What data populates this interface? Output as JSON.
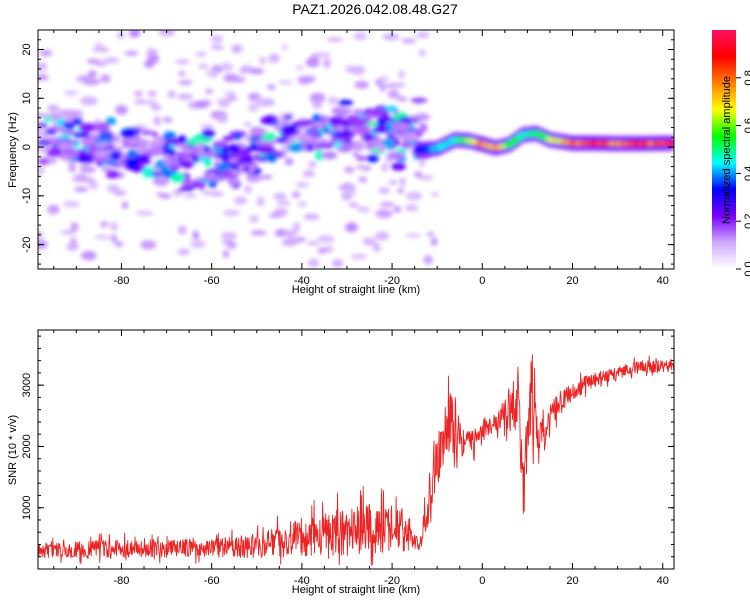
{
  "title": "PAZ1.2026.042.08.48.G27",
  "colors": {
    "snr_line": "#ee2222",
    "axis": "#000000"
  },
  "chart_data": [
    {
      "type": "heatmap",
      "title": "PAZ1.2026.042.08.48.G27",
      "xlabel": "Height of straight line (km)",
      "ylabel": "Frequency (Hz)",
      "xlim": [
        -98.5,
        42.5
      ],
      "ylim": [
        -25,
        24
      ],
      "xticks": [
        -80,
        -60,
        -40,
        -20,
        0,
        20,
        40
      ],
      "yticks": [
        -20,
        -10,
        0,
        10,
        20
      ],
      "colorbar": {
        "label": "Normalized spectral amplitude",
        "range": [
          0,
          1
        ],
        "ticks": [
          "0.0",
          "0.2",
          "0.4",
          "0.6",
          "0.8"
        ],
        "tick_values": [
          0,
          0.2,
          0.4,
          0.6,
          0.8
        ],
        "colors": [
          "#ffffff",
          "#cfa8ff",
          "#7a00ff",
          "#0000ff",
          "#00ffff",
          "#00ff00",
          "#ffff00",
          "#ff8000",
          "#ff0000",
          "#ff1060"
        ]
      },
      "description_points": {
        "noisy_region_x": [
          -98.5,
          -14
        ],
        "noisy_band_center_hz": 0,
        "noisy_band_halfwidth_hz": 6,
        "signal_track": [
          {
            "x": -14,
            "y": -0.5,
            "v": 0.3
          },
          {
            "x": -10,
            "y": -0.3,
            "v": 0.45
          },
          {
            "x": -6,
            "y": 1.5,
            "v": 0.5
          },
          {
            "x": -3,
            "y": 1.3,
            "v": 0.65
          },
          {
            "x": 0,
            "y": 0.6,
            "v": 0.85
          },
          {
            "x": 3,
            "y": -0.2,
            "v": 0.8
          },
          {
            "x": 6,
            "y": 0.5,
            "v": 0.6
          },
          {
            "x": 9,
            "y": 2.5,
            "v": 0.5
          },
          {
            "x": 12,
            "y": 2.8,
            "v": 0.55
          },
          {
            "x": 15,
            "y": 1.5,
            "v": 0.65
          },
          {
            "x": 20,
            "y": 0.8,
            "v": 0.85
          },
          {
            "x": 25,
            "y": 0.8,
            "v": 0.9
          },
          {
            "x": 30,
            "y": 0.7,
            "v": 0.8
          },
          {
            "x": 35,
            "y": 0.7,
            "v": 0.9
          },
          {
            "x": 42,
            "y": 0.8,
            "v": 0.9
          }
        ]
      }
    },
    {
      "type": "line",
      "xlabel": "Height of straight line (km)",
      "ylabel": "SNR (10 * v/v)",
      "xlim": [
        -98.5,
        42.5
      ],
      "ylim": [
        0,
        3900
      ],
      "xticks": [
        -80,
        -60,
        -40,
        -20,
        0,
        20,
        40
      ],
      "yticks": [
        1000,
        2000,
        3000
      ],
      "series": [
        {
          "name": "SNR",
          "trend_x": [
            -98.5,
            -80,
            -60,
            -50,
            -40,
            -30,
            -20,
            -16,
            -14,
            -12,
            -10,
            -8,
            -6,
            -4,
            -2,
            0,
            2,
            4,
            6,
            8,
            9,
            10,
            11,
            12,
            14,
            16,
            20,
            25,
            30,
            35,
            42.5
          ],
          "trend_y": [
            300,
            330,
            340,
            380,
            500,
            620,
            700,
            600,
            350,
            1000,
            1800,
            2300,
            2500,
            2000,
            2100,
            2300,
            2300,
            2500,
            2600,
            2800,
            1500,
            2000,
            3000,
            2000,
            2200,
            2600,
            2900,
            3100,
            3200,
            3300,
            3300
          ],
          "noise_amplitude": [
            120,
            150,
            150,
            200,
            300,
            400,
            420,
            300,
            80,
            350,
            500,
            500,
            500,
            300,
            200,
            150,
            150,
            200,
            300,
            600,
            800,
            700,
            700,
            500,
            250,
            200,
            150,
            120,
            100,
            100,
            100
          ]
        }
      ]
    }
  ]
}
